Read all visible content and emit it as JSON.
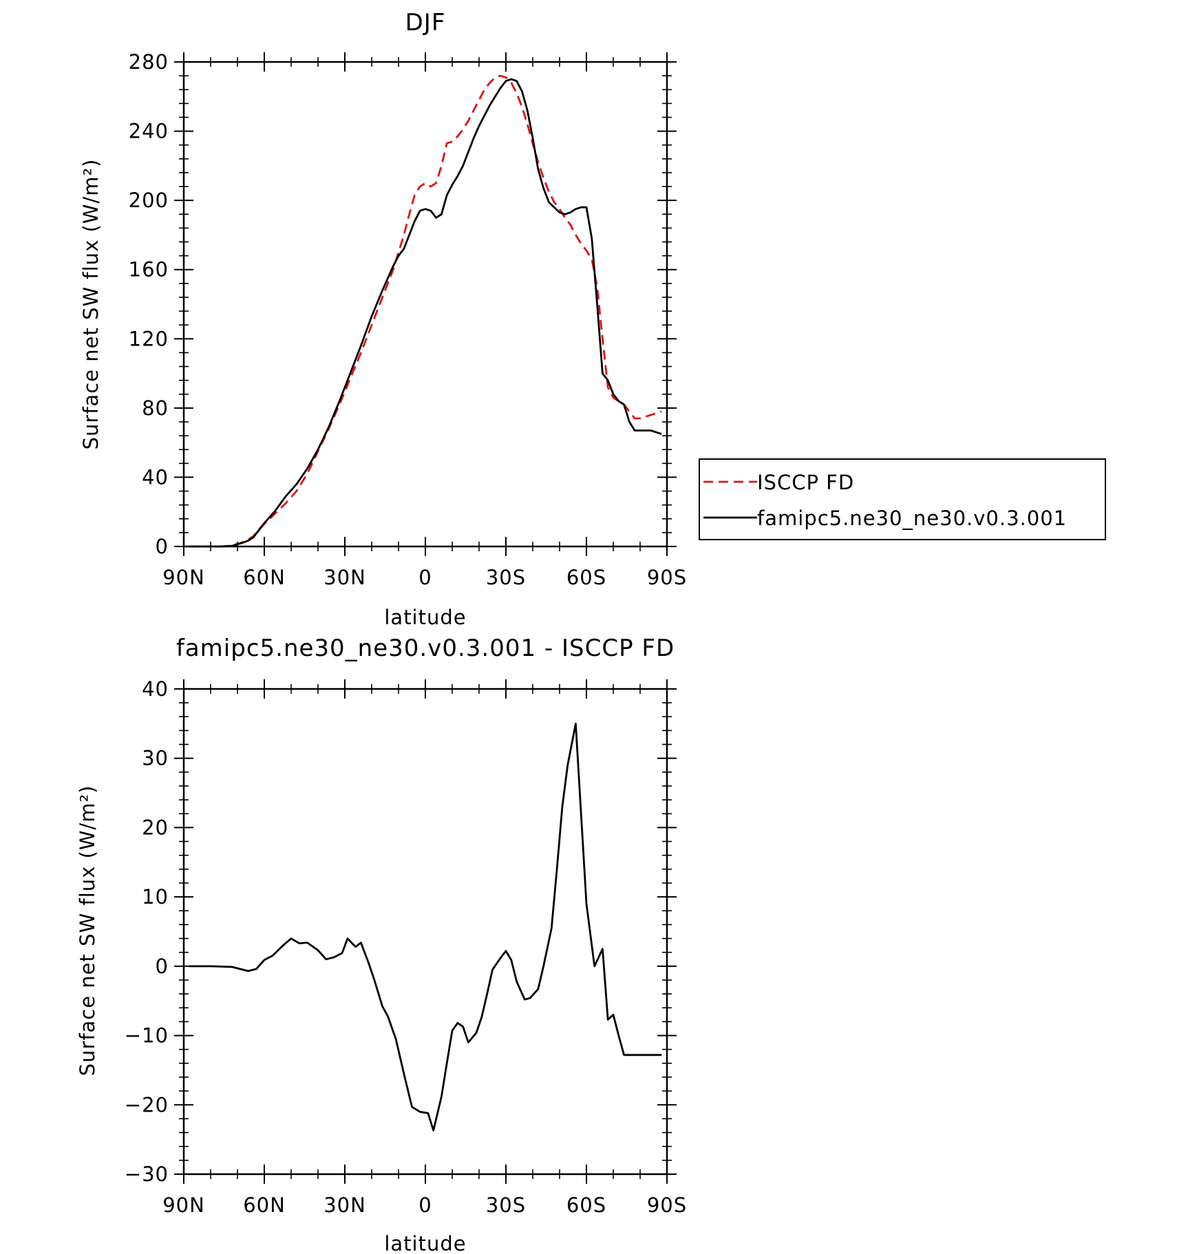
{
  "chart_data": [
    {
      "type": "line",
      "title": "DJF",
      "xlabel": "latitude",
      "ylabel": "Surface net SW flux (W/m²)",
      "xlim": [
        90,
        -90
      ],
      "ylim": [
        0,
        280
      ],
      "xticks": [
        90,
        60,
        30,
        0,
        -30,
        -60,
        -90
      ],
      "xtick_labels": [
        "90N",
        "60N",
        "30N",
        "0",
        "30S",
        "60S",
        "90S"
      ],
      "yticks": [
        0,
        40,
        80,
        120,
        160,
        200,
        240,
        280
      ],
      "ytick_labels": [
        "0",
        "40",
        "80",
        "120",
        "160",
        "200",
        "240",
        "280"
      ],
      "grid": false,
      "legend_position": "right, outside plot",
      "series": [
        {
          "name": "ISCCP FD",
          "color": "#e01010",
          "dash": "dashed",
          "x": [
            88,
            84,
            80,
            76,
            72,
            70,
            68,
            66,
            64,
            62,
            60,
            56,
            52,
            48,
            44,
            40,
            36,
            32,
            28,
            24,
            20,
            16,
            12,
            10,
            8,
            6,
            4,
            2,
            0,
            -2,
            -4,
            -6,
            -8,
            -10,
            -12,
            -14,
            -16,
            -18,
            -20,
            -22,
            -24,
            -26,
            -28,
            -30,
            -32,
            -34,
            -36,
            -38,
            -40,
            -42,
            -44,
            -46,
            -48,
            -50,
            -52,
            -54,
            -56,
            -58,
            -60,
            -62,
            -64,
            -66,
            -68,
            -70,
            -72,
            -74,
            -76,
            -78,
            -80,
            -82,
            -84,
            -86,
            -88
          ],
          "y": [
            0,
            0,
            0,
            0,
            0.5,
            1.5,
            2.5,
            4,
            6,
            10,
            13,
            19,
            25,
            32,
            42,
            55,
            68,
            82,
            97,
            112,
            128,
            144,
            160,
            170,
            180,
            192,
            203,
            208,
            210,
            208,
            210,
            220,
            233,
            234,
            237,
            241,
            246,
            252,
            258,
            264,
            268,
            271,
            272,
            271,
            268,
            262,
            254,
            244,
            233,
            222,
            213,
            205,
            199,
            195,
            190,
            186,
            180,
            175,
            171,
            166,
            150,
            120,
            92,
            86,
            84,
            82,
            78,
            74,
            74,
            75,
            76,
            77,
            78
          ]
        },
        {
          "name": "famipc5.ne30_ne30.v0.3.001",
          "color": "#000000",
          "dash": "solid",
          "x": [
            88,
            84,
            80,
            76,
            72,
            70,
            68,
            66,
            64,
            62,
            60,
            56,
            52,
            48,
            44,
            40,
            36,
            32,
            28,
            24,
            20,
            16,
            12,
            10,
            8,
            6,
            4,
            2,
            0,
            -2,
            -4,
            -6,
            -8,
            -10,
            -12,
            -14,
            -16,
            -18,
            -20,
            -22,
            -24,
            -26,
            -28,
            -30,
            -32,
            -34,
            -36,
            -38,
            -40,
            -42,
            -44,
            -46,
            -48,
            -50,
            -52,
            -54,
            -56,
            -58,
            -60,
            -62,
            -64,
            -66,
            -68,
            -70,
            -72,
            -74,
            -76,
            -78,
            -80,
            -82,
            -84,
            -86,
            -88
          ],
          "y": [
            0,
            0,
            0,
            0,
            0.3,
            1.3,
            2.2,
            3.4,
            5.4,
            9.5,
            13.5,
            20.5,
            29,
            36,
            45,
            56,
            69,
            84,
            100,
            116,
            133,
            148,
            162,
            168,
            172,
            180,
            188,
            194,
            195,
            194,
            190,
            192,
            203,
            209,
            214,
            220,
            228,
            236,
            243,
            249,
            255,
            260,
            265,
            269,
            270,
            269,
            263,
            252,
            236,
            218,
            207,
            199,
            196,
            193,
            192,
            193,
            195,
            196,
            196,
            178,
            140,
            100,
            96,
            88,
            84,
            82,
            72,
            67,
            67,
            67,
            67,
            66,
            65
          ]
        }
      ]
    },
    {
      "type": "line",
      "title": "famipc5.ne30_ne30.v0.3.001 - ISCCP FD",
      "xlabel": "latitude",
      "ylabel": "Surface net SW flux (W/m²)",
      "xlim": [
        90,
        -90
      ],
      "ylim": [
        -30,
        40
      ],
      "xticks": [
        90,
        60,
        30,
        0,
        -30,
        -60,
        -90
      ],
      "xtick_labels": [
        "90N",
        "60N",
        "30N",
        "0",
        "30S",
        "60S",
        "90S"
      ],
      "yticks": [
        -30,
        -20,
        -10,
        0,
        10,
        20,
        30,
        40
      ],
      "ytick_labels": [
        "−30",
        "−20",
        "−10",
        "0",
        "10",
        "20",
        "30",
        "40"
      ],
      "grid": false,
      "series": [
        {
          "color": "#000000",
          "dash": "solid",
          "x": [
            88,
            80,
            72,
            70,
            66,
            63,
            60,
            57,
            53,
            50,
            47,
            44,
            40,
            37,
            34,
            31,
            29,
            26,
            24,
            21,
            19,
            16,
            14,
            11,
            8,
            5,
            2,
            -1,
            -3,
            -6,
            -8,
            -10,
            -12,
            -14,
            -16,
            -19,
            -21,
            -23,
            -25,
            -28,
            -30,
            -32,
            -34,
            -37,
            -39,
            -42,
            -44,
            -47,
            -49,
            -51,
            -53,
            -56,
            -58,
            -60,
            -63,
            -66,
            -68,
            -70,
            -72,
            -74,
            -76,
            -79,
            -81,
            -83,
            -85,
            -88
          ],
          "y": [
            0,
            0,
            -0.1,
            -0.3,
            -0.7,
            -0.4,
            0.9,
            1.5,
            3,
            4,
            3.3,
            3.4,
            2.3,
            1,
            1.3,
            1.9,
            4,
            2.8,
            3.4,
            0.3,
            -2,
            -5.8,
            -7.2,
            -10.5,
            -15.5,
            -20.3,
            -21,
            -21.2,
            -23.7,
            -18.8,
            -14,
            -9.3,
            -8.2,
            -8.7,
            -11,
            -9.6,
            -7.3,
            -4,
            -0.5,
            1.2,
            2.2,
            0.9,
            -2.2,
            -4.8,
            -4.6,
            -3.3,
            0,
            5.5,
            14,
            23,
            29,
            35,
            22,
            9,
            0,
            2.5,
            -7.7,
            -7.0,
            -10,
            -12.8,
            -12.8,
            -12.8,
            -12.8,
            -12.8,
            -12.8,
            -12.8
          ]
        }
      ]
    }
  ]
}
